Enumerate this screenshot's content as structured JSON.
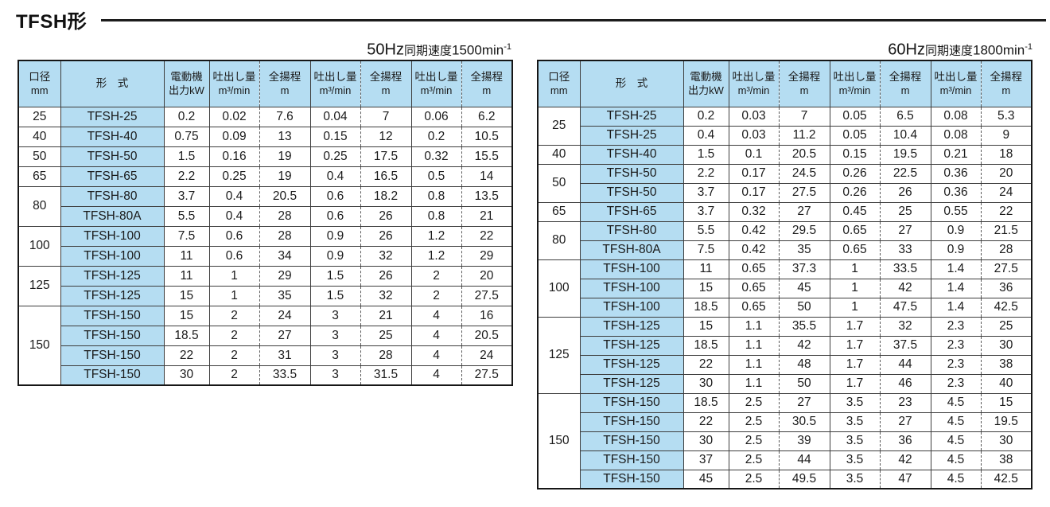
{
  "page_title": "TFSH形",
  "tables": [
    {
      "id": "50hz",
      "caption": {
        "freq": "50Hz",
        "label": "同期速度",
        "speed": "1500",
        "unit": "min",
        "sup": "-1"
      },
      "headers": [
        {
          "l1": "口径",
          "l2": "mm"
        },
        {
          "l1": "形　式",
          "l2": ""
        },
        {
          "l1": "電動機",
          "l2": "出力kW"
        },
        {
          "l1": "吐出し量",
          "l2": "m³/min"
        },
        {
          "l1": "全揚程",
          "l2": "m"
        },
        {
          "l1": "吐出し量",
          "l2": "m³/min"
        },
        {
          "l1": "全揚程",
          "l2": "m"
        },
        {
          "l1": "吐出し量",
          "l2": "m³/min"
        },
        {
          "l1": "全揚程",
          "l2": "m"
        }
      ],
      "groups": [
        {
          "size": "25",
          "rows": [
            {
              "model": "TFSH-25",
              "kw": "0.2",
              "values": [
                "0.02",
                "7.6",
                "0.04",
                "7",
                "0.06",
                "6.2"
              ]
            }
          ]
        },
        {
          "size": "40",
          "rows": [
            {
              "model": "TFSH-40",
              "kw": "0.75",
              "values": [
                "0.09",
                "13",
                "0.15",
                "12",
                "0.2",
                "10.5"
              ]
            }
          ]
        },
        {
          "size": "50",
          "rows": [
            {
              "model": "TFSH-50",
              "kw": "1.5",
              "values": [
                "0.16",
                "19",
                "0.25",
                "17.5",
                "0.32",
                "15.5"
              ]
            }
          ]
        },
        {
          "size": "65",
          "rows": [
            {
              "model": "TFSH-65",
              "kw": "2.2",
              "values": [
                "0.25",
                "19",
                "0.4",
                "16.5",
                "0.5",
                "14"
              ]
            }
          ]
        },
        {
          "size": "80",
          "rows": [
            {
              "model": "TFSH-80",
              "kw": "3.7",
              "values": [
                "0.4",
                "20.5",
                "0.6",
                "18.2",
                "0.8",
                "13.5"
              ]
            },
            {
              "model": "TFSH-80A",
              "kw": "5.5",
              "values": [
                "0.4",
                "28",
                "0.6",
                "26",
                "0.8",
                "21"
              ]
            }
          ]
        },
        {
          "size": "100",
          "rows": [
            {
              "model": "TFSH-100",
              "kw": "7.5",
              "values": [
                "0.6",
                "28",
                "0.9",
                "26",
                "1.2",
                "22"
              ]
            },
            {
              "model": "TFSH-100",
              "kw": "11",
              "values": [
                "0.6",
                "34",
                "0.9",
                "32",
                "1.2",
                "29"
              ]
            }
          ]
        },
        {
          "size": "125",
          "rows": [
            {
              "model": "TFSH-125",
              "kw": "11",
              "values": [
                "1",
                "29",
                "1.5",
                "26",
                "2",
                "20"
              ]
            },
            {
              "model": "TFSH-125",
              "kw": "15",
              "values": [
                "1",
                "35",
                "1.5",
                "32",
                "2",
                "27.5"
              ]
            }
          ]
        },
        {
          "size": "150",
          "rows": [
            {
              "model": "TFSH-150",
              "kw": "15",
              "values": [
                "2",
                "24",
                "3",
                "21",
                "4",
                "16"
              ]
            },
            {
              "model": "TFSH-150",
              "kw": "18.5",
              "values": [
                "2",
                "27",
                "3",
                "25",
                "4",
                "20.5"
              ]
            },
            {
              "model": "TFSH-150",
              "kw": "22",
              "values": [
                "2",
                "31",
                "3",
                "28",
                "4",
                "24"
              ]
            },
            {
              "model": "TFSH-150",
              "kw": "30",
              "values": [
                "2",
                "33.5",
                "3",
                "31.5",
                "4",
                "27.5"
              ]
            }
          ]
        }
      ]
    },
    {
      "id": "60hz",
      "caption": {
        "freq": "60Hz",
        "label": "同期速度",
        "speed": "1800",
        "unit": "min",
        "sup": "-1"
      },
      "headers": [
        {
          "l1": "口径",
          "l2": "mm"
        },
        {
          "l1": "形　式",
          "l2": ""
        },
        {
          "l1": "電動機",
          "l2": "出力kW"
        },
        {
          "l1": "吐出し量",
          "l2": "m³/min"
        },
        {
          "l1": "全揚程",
          "l2": "m"
        },
        {
          "l1": "吐出し量",
          "l2": "m³/min"
        },
        {
          "l1": "全揚程",
          "l2": "m"
        },
        {
          "l1": "吐出し量",
          "l2": "m³/min"
        },
        {
          "l1": "全揚程",
          "l2": "m"
        }
      ],
      "groups": [
        {
          "size": "25",
          "rows": [
            {
              "model": "TFSH-25",
              "kw": "0.2",
              "values": [
                "0.03",
                "7",
                "0.05",
                "6.5",
                "0.08",
                "5.3"
              ]
            },
            {
              "model": "TFSH-25",
              "kw": "0.4",
              "values": [
                "0.03",
                "11.2",
                "0.05",
                "10.4",
                "0.08",
                "9"
              ]
            }
          ]
        },
        {
          "size": "40",
          "rows": [
            {
              "model": "TFSH-40",
              "kw": "1.5",
              "values": [
                "0.1",
                "20.5",
                "0.15",
                "19.5",
                "0.21",
                "18"
              ]
            }
          ]
        },
        {
          "size": "50",
          "rows": [
            {
              "model": "TFSH-50",
              "kw": "2.2",
              "values": [
                "0.17",
                "24.5",
                "0.26",
                "22.5",
                "0.36",
                "20"
              ]
            },
            {
              "model": "TFSH-50",
              "kw": "3.7",
              "values": [
                "0.17",
                "27.5",
                "0.26",
                "26",
                "0.36",
                "24"
              ]
            }
          ]
        },
        {
          "size": "65",
          "rows": [
            {
              "model": "TFSH-65",
              "kw": "3.7",
              "values": [
                "0.32",
                "27",
                "0.45",
                "25",
                "0.55",
                "22"
              ]
            }
          ]
        },
        {
          "size": "80",
          "rows": [
            {
              "model": "TFSH-80",
              "kw": "5.5",
              "values": [
                "0.42",
                "29.5",
                "0.65",
                "27",
                "0.9",
                "21.5"
              ]
            },
            {
              "model": "TFSH-80A",
              "kw": "7.5",
              "values": [
                "0.42",
                "35",
                "0.65",
                "33",
                "0.9",
                "28"
              ]
            }
          ]
        },
        {
          "size": "100",
          "rows": [
            {
              "model": "TFSH-100",
              "kw": "11",
              "values": [
                "0.65",
                "37.3",
                "1",
                "33.5",
                "1.4",
                "27.5"
              ]
            },
            {
              "model": "TFSH-100",
              "kw": "15",
              "values": [
                "0.65",
                "45",
                "1",
                "42",
                "1.4",
                "36"
              ]
            },
            {
              "model": "TFSH-100",
              "kw": "18.5",
              "values": [
                "0.65",
                "50",
                "1",
                "47.5",
                "1.4",
                "42.5"
              ]
            }
          ]
        },
        {
          "size": "125",
          "rows": [
            {
              "model": "TFSH-125",
              "kw": "15",
              "values": [
                "1.1",
                "35.5",
                "1.7",
                "32",
                "2.3",
                "25"
              ]
            },
            {
              "model": "TFSH-125",
              "kw": "18.5",
              "values": [
                "1.1",
                "42",
                "1.7",
                "37.5",
                "2.3",
                "30"
              ]
            },
            {
              "model": "TFSH-125",
              "kw": "22",
              "values": [
                "1.1",
                "48",
                "1.7",
                "44",
                "2.3",
                "38"
              ]
            },
            {
              "model": "TFSH-125",
              "kw": "30",
              "values": [
                "1.1",
                "50",
                "1.7",
                "46",
                "2.3",
                "40"
              ]
            }
          ]
        },
        {
          "size": "150",
          "rows": [
            {
              "model": "TFSH-150",
              "kw": "18.5",
              "values": [
                "2.5",
                "27",
                "3.5",
                "23",
                "4.5",
                "15"
              ]
            },
            {
              "model": "TFSH-150",
              "kw": "22",
              "values": [
                "2.5",
                "30.5",
                "3.5",
                "27",
                "4.5",
                "19.5"
              ]
            },
            {
              "model": "TFSH-150",
              "kw": "30",
              "values": [
                "2.5",
                "39",
                "3.5",
                "36",
                "4.5",
                "30"
              ]
            },
            {
              "model": "TFSH-150",
              "kw": "37",
              "values": [
                "2.5",
                "44",
                "3.5",
                "42",
                "4.5",
                "38"
              ]
            },
            {
              "model": "TFSH-150",
              "kw": "45",
              "values": [
                "2.5",
                "49.5",
                "3.5",
                "47",
                "4.5",
                "42.5"
              ]
            }
          ]
        }
      ]
    }
  ],
  "colors": {
    "cell_blue": "#b5ddf2",
    "border_dark": "#161616",
    "grid_line": "#3d3d3d",
    "text": "#1a1a1a"
  }
}
